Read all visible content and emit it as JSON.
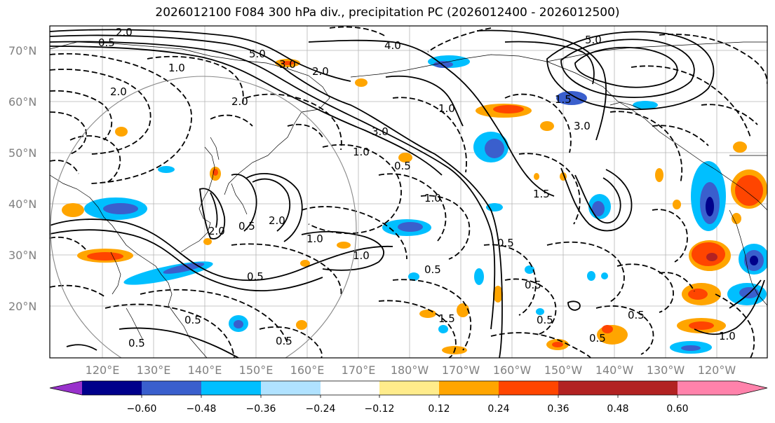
{
  "title": "2026012100 F084 300 hPa div., precipitation PC (2026012400 - 2026012500)",
  "map": {
    "lat_labels": [
      "70°N",
      "60°N",
      "50°N",
      "40°N",
      "30°N",
      "20°N"
    ],
    "lon_labels": [
      "120°E",
      "130°E",
      "140°E",
      "150°E",
      "160°E",
      "170°E",
      "180°W",
      "170°W",
      "160°W",
      "150°W",
      "140°W",
      "130°W",
      "120°W"
    ],
    "contour_labels": [
      "2.0",
      "5.0",
      "1.0",
      "0.5",
      "3.0",
      "2.0",
      "4.0",
      "5.0",
      "1.5",
      "3.0",
      "2.0",
      "2.0",
      "1.0",
      "3.0",
      "1.0",
      "0.5",
      "1.5",
      "1.0",
      "2.0",
      "0.5",
      "1.0",
      "2.0",
      "0.5",
      "0.5",
      "0.5",
      "1.0",
      "0.5",
      "1.5",
      "0.5",
      "0.5",
      "0.5",
      "0.5",
      "0.5",
      "0.5",
      "1.0"
    ]
  },
  "colorbar": {
    "tick_labels": [
      "−0.60",
      "−0.48",
      "−0.36",
      "−0.24",
      "−0.12",
      "0.12",
      "0.24",
      "0.36",
      "0.48",
      "0.60"
    ],
    "colors": [
      "#9932cc",
      "#00008b",
      "#3a5fcd",
      "#00bfff",
      "#b0e2ff",
      "#ffffff",
      "#ffec8b",
      "#ffa500",
      "#ff4500",
      "#b22222",
      "#ff82ab"
    ]
  }
}
